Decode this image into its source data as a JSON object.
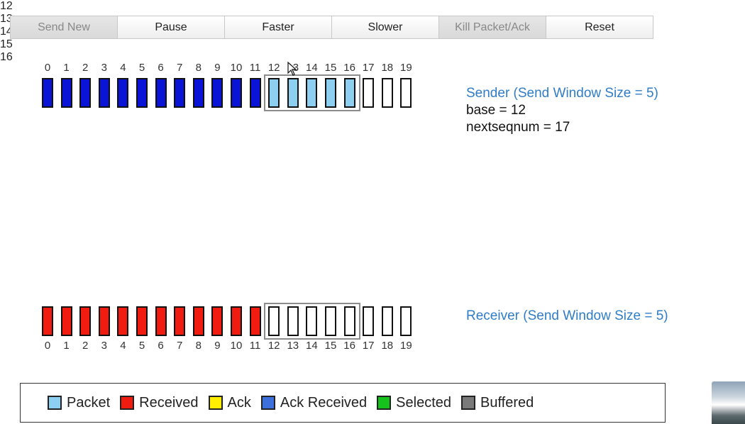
{
  "toolbar": {
    "buttons": [
      {
        "label": "Send New",
        "disabled": true
      },
      {
        "label": "Pause",
        "disabled": false
      },
      {
        "label": "Faster",
        "disabled": false
      },
      {
        "label": "Slower",
        "disabled": false
      },
      {
        "label": "Kill Packet/Ack",
        "disabled": true
      },
      {
        "label": "Reset",
        "disabled": false
      }
    ]
  },
  "sender": {
    "seq_numbers": [
      "0",
      "1",
      "2",
      "3",
      "4",
      "5",
      "6",
      "7",
      "8",
      "9",
      "10",
      "11",
      "12",
      "13",
      "14",
      "15",
      "16",
      "17",
      "18",
      "19"
    ],
    "states": [
      "ack_received",
      "ack_received",
      "ack_received",
      "ack_received",
      "ack_received",
      "ack_received",
      "ack_received",
      "ack_received",
      "ack_received",
      "ack_received",
      "ack_received",
      "ack_received",
      "packet",
      "packet",
      "packet",
      "packet",
      "packet",
      "empty",
      "empty",
      "empty"
    ],
    "window_start": 12,
    "window_size": 5,
    "title": "Sender (Send Window Size = 5)",
    "base_line": "base = 12",
    "nextseqnum_line": "nextseqnum = 17"
  },
  "in_flight": [
    {
      "label": "12",
      "index": 12,
      "progress": 0.78
    },
    {
      "label": "13",
      "index": 13,
      "progress": 0.62
    },
    {
      "label": "14",
      "index": 14,
      "progress": 0.52
    },
    {
      "label": "15",
      "index": 15,
      "progress": 0.4
    },
    {
      "label": "16",
      "index": 16,
      "progress": 0.2
    }
  ],
  "receiver": {
    "seq_numbers": [
      "0",
      "1",
      "2",
      "3",
      "4",
      "5",
      "6",
      "7",
      "8",
      "9",
      "10",
      "11",
      "12",
      "13",
      "14",
      "15",
      "16",
      "17",
      "18",
      "19"
    ],
    "states": [
      "received",
      "received",
      "received",
      "received",
      "received",
      "received",
      "received",
      "received",
      "received",
      "received",
      "received",
      "received",
      "empty",
      "empty",
      "empty",
      "empty",
      "empty",
      "empty",
      "empty",
      "empty"
    ],
    "window_start": 12,
    "window_size": 5,
    "title": "Receiver (Send Window Size = 5)"
  },
  "legend": {
    "items": [
      {
        "label": "Packet",
        "color": "#8ccff0"
      },
      {
        "label": "Received",
        "color": "#f01c10"
      },
      {
        "label": "Ack",
        "color": "#ffee00"
      },
      {
        "label": "Ack Received",
        "color": "#3d6fdd"
      },
      {
        "label": "Selected",
        "color": "#16c21c"
      },
      {
        "label": "Buffered",
        "color": "#7a7a7a"
      }
    ]
  },
  "colors": {
    "packet": "#8ccff0",
    "received": "#f01c10",
    "ack_received_box": "#0a14d6",
    "window_frame": "#8c8c8c",
    "title_blue": "#2f7dc6"
  }
}
